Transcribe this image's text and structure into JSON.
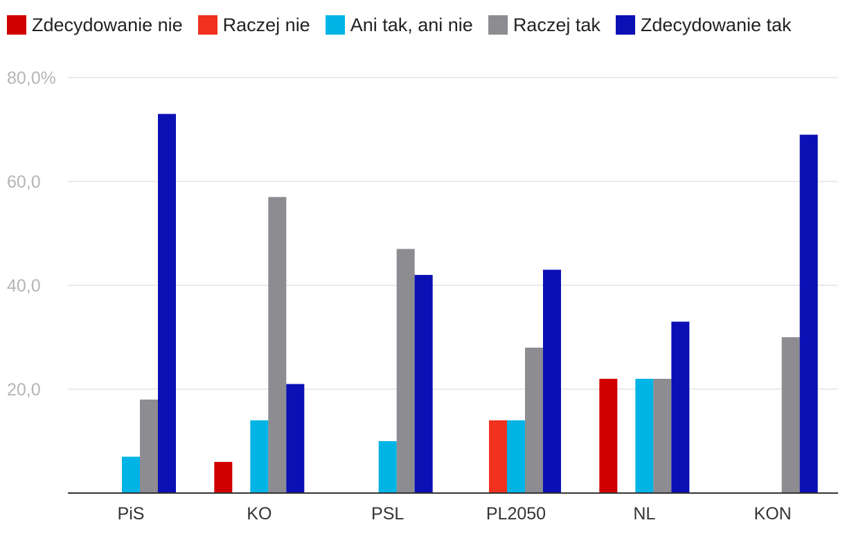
{
  "chart_data": {
    "type": "bar",
    "categories": [
      "PiS",
      "KO",
      "PSL",
      "PL2050",
      "NL",
      "KON"
    ],
    "series": [
      {
        "name": "Zdecydowanie nie",
        "color": "#d10000",
        "values": [
          0,
          6,
          0,
          0,
          22,
          0
        ]
      },
      {
        "name": "Raczej nie",
        "color": "#f0321e",
        "values": [
          0,
          0,
          0,
          14,
          0,
          0
        ]
      },
      {
        "name": "Ani tak, ani nie",
        "color": "#00b4e6",
        "values": [
          7,
          14,
          10,
          14,
          22,
          0
        ]
      },
      {
        "name": "Raczej tak",
        "color": "#8c8c91",
        "values": [
          18,
          57,
          47,
          28,
          22,
          30
        ]
      },
      {
        "name": "Zdecydowanie tak",
        "color": "#0a10b4",
        "values": [
          73,
          21,
          42,
          43,
          33,
          69
        ]
      }
    ],
    "ylim": [
      0,
      80
    ],
    "yticks": [
      20,
      40,
      60,
      80
    ],
    "ytick_labels": [
      "20,0",
      "40,0",
      "60,0",
      "80,0%"
    ],
    "legend_position": "top-left",
    "grid": true
  }
}
